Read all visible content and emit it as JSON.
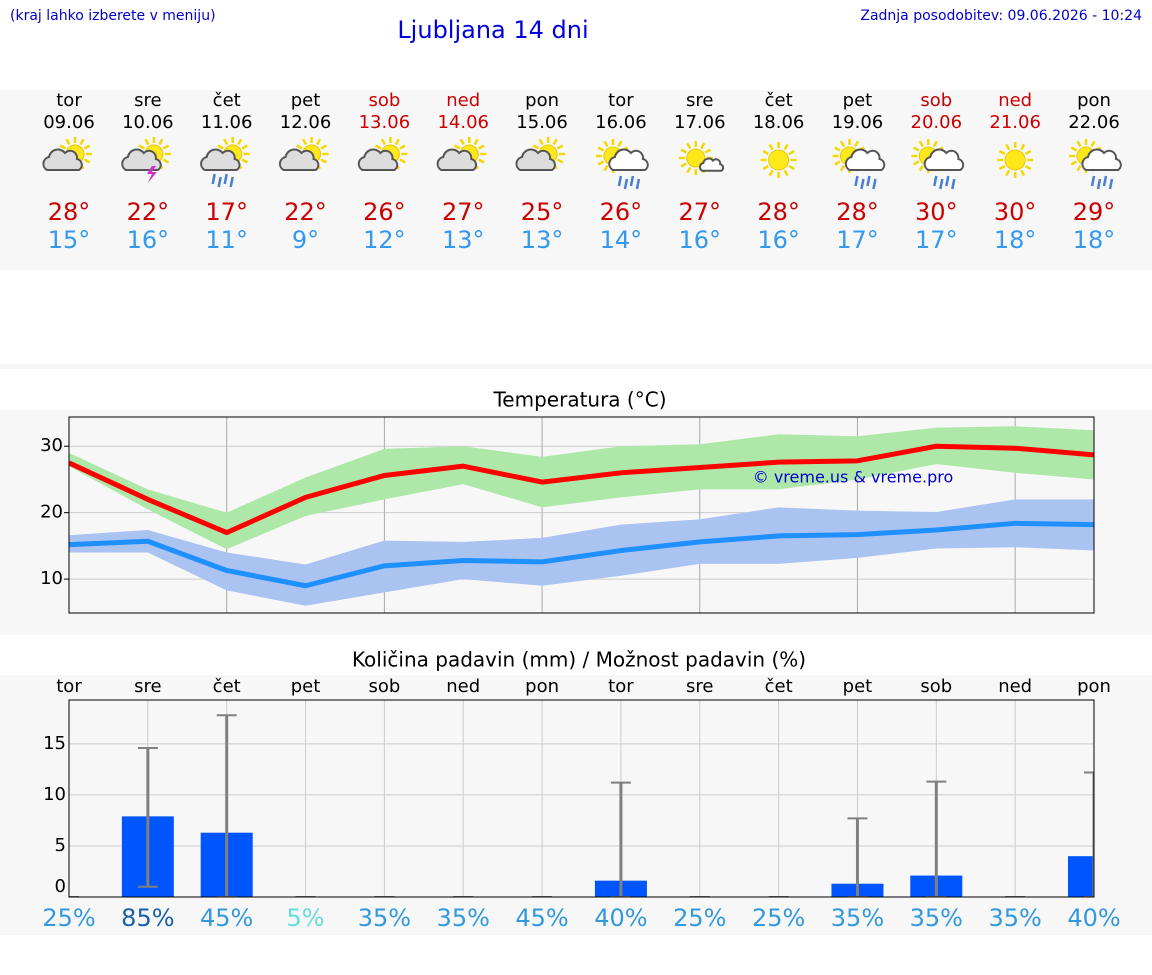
{
  "header": {
    "menu_hint": "(kraj lahko izberete v meniju)",
    "title": "Ljubljana 14 dni",
    "updated": "Zadnja posodobitev: 09.06.2026 - 10:24"
  },
  "forecast": [
    {
      "day": "tor",
      "date": "09.06",
      "icon": "partly-cloudy",
      "max": "28°",
      "min": "15°",
      "color": "#000000"
    },
    {
      "day": "sre",
      "date": "10.06",
      "icon": "thunder",
      "max": "22°",
      "min": "16°",
      "color": "#000000"
    },
    {
      "day": "čet",
      "date": "11.06",
      "icon": "rain",
      "max": "17°",
      "min": "11°",
      "color": "#000000"
    },
    {
      "day": "pet",
      "date": "12.06",
      "icon": "partly-cloudy",
      "max": "22°",
      "min": "9°",
      "color": "#000000"
    },
    {
      "day": "sob",
      "date": "13.06",
      "icon": "partly-cloudy",
      "max": "26°",
      "min": "12°",
      "color": "#cc0000"
    },
    {
      "day": "ned",
      "date": "14.06",
      "icon": "partly-cloudy",
      "max": "27°",
      "min": "13°",
      "color": "#cc0000"
    },
    {
      "day": "pon",
      "date": "15.06",
      "icon": "partly-cloudy",
      "max": "25°",
      "min": "13°",
      "color": "#000000"
    },
    {
      "day": "tor",
      "date": "16.06",
      "icon": "showers",
      "max": "26°",
      "min": "14°",
      "color": "#000000"
    },
    {
      "day": "sre",
      "date": "17.06",
      "icon": "mostly-sunny",
      "max": "27°",
      "min": "16°",
      "color": "#000000"
    },
    {
      "day": "čet",
      "date": "18.06",
      "icon": "sunny",
      "max": "28°",
      "min": "16°",
      "color": "#000000"
    },
    {
      "day": "pet",
      "date": "19.06",
      "icon": "showers",
      "max": "28°",
      "min": "17°",
      "color": "#000000"
    },
    {
      "day": "sob",
      "date": "20.06",
      "icon": "showers",
      "max": "30°",
      "min": "17°",
      "color": "#cc0000"
    },
    {
      "day": "ned",
      "date": "21.06",
      "icon": "sunny",
      "max": "30°",
      "min": "18°",
      "color": "#cc0000"
    },
    {
      "day": "pon",
      "date": "22.06",
      "icon": "showers",
      "max": "29°",
      "min": "18°",
      "color": "#000000"
    }
  ],
  "chart_data": [
    {
      "type": "line",
      "title": "Temperatura (°C)",
      "ylim": [
        4.9,
        34.4
      ],
      "yticks": [
        10,
        20,
        30
      ],
      "grid": true,
      "annotation": "© vreme.us & vreme.pro",
      "bands": [
        {
          "color": "#aee8a8",
          "high": [
            29,
            23.5,
            20,
            25.3,
            29.6,
            30,
            28.4,
            30,
            30.3,
            31.8,
            31.5,
            32.8,
            33,
            32.4
          ],
          "low": [
            27,
            20.5,
            14.5,
            19.5,
            22,
            24.3,
            20.8,
            22.3,
            23.5,
            23.5,
            25,
            27.3,
            26,
            25
          ]
        },
        {
          "color": "#abc3f1",
          "high": [
            16.6,
            17.4,
            14,
            12.2,
            15.8,
            15.6,
            16.2,
            18.2,
            19,
            20.8,
            20.3,
            20.1,
            22,
            22
          ],
          "low": [
            14,
            14,
            8.3,
            6,
            8,
            10,
            9,
            10.5,
            12.3,
            12.3,
            13.2,
            14.6,
            14.8,
            14.3
          ]
        }
      ],
      "series": [
        {
          "color": "#ff0000",
          "values": [
            27.5,
            22,
            17,
            22.3,
            25.6,
            27,
            24.6,
            26,
            26.8,
            27.6,
            27.8,
            30,
            29.7,
            28.7
          ]
        },
        {
          "color": "#1e90ff",
          "values": [
            15.2,
            15.7,
            11.3,
            9,
            12,
            12.8,
            12.6,
            14.3,
            15.6,
            16.5,
            16.7,
            17.4,
            18.4,
            18.2
          ]
        }
      ]
    },
    {
      "type": "bar",
      "title": "Količina padavin (mm) / Možnost padavin (%)",
      "categories": [
        "tor",
        "sre",
        "čet",
        "pet",
        "sob",
        "ned",
        "pon",
        "tor",
        "sre",
        "čet",
        "pet",
        "sob",
        "ned",
        "pon"
      ],
      "ylim": [
        0,
        19.3
      ],
      "yticks": [
        0,
        5,
        10,
        15
      ],
      "grid": true,
      "series": [
        {
          "color": "#0055ff",
          "values": [
            0,
            7.9,
            6.3,
            0,
            0,
            0,
            0,
            1.6,
            0,
            0,
            1.3,
            2.1,
            0,
            4.0
          ]
        }
      ],
      "range_color": "#808080",
      "range_low": [
        0,
        1,
        0,
        0,
        0,
        0,
        0,
        0,
        0,
        0,
        0,
        0,
        0,
        0
      ],
      "range_high": [
        0,
        14.6,
        17.8,
        0,
        0,
        0,
        0,
        11.2,
        0,
        0,
        7.7,
        11.3,
        0,
        12.2
      ],
      "probability": [
        25,
        85,
        45,
        5,
        35,
        35,
        45,
        40,
        25,
        25,
        35,
        35,
        35,
        40
      ],
      "probability_labels": [
        "25%",
        "85%",
        "45%",
        "5%",
        "35%",
        "35%",
        "45%",
        "40%",
        "25%",
        "25%",
        "35%",
        "35%",
        "35%",
        "40%"
      ],
      "probability_colors": [
        "#3399dd",
        "#1a5fa8",
        "#3399dd",
        "#66dddd",
        "#3399dd",
        "#3399dd",
        "#3399dd",
        "#3399dd",
        "#3399dd",
        "#3399dd",
        "#3399dd",
        "#3399dd",
        "#3399dd",
        "#3399dd"
      ]
    }
  ]
}
